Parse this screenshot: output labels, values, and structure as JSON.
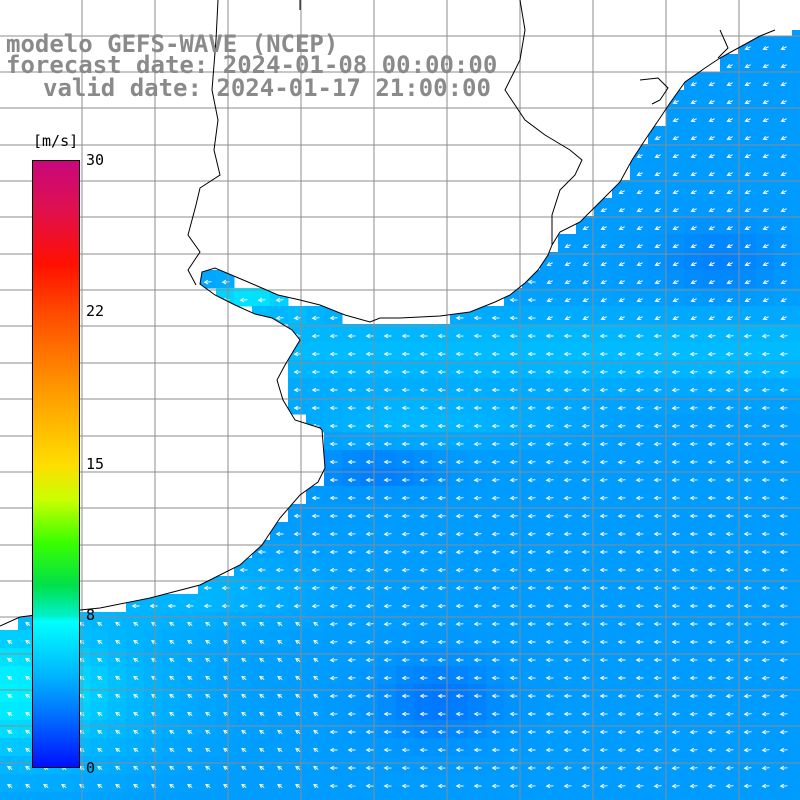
{
  "title": {
    "line1": "modelo GEFS-WAVE (NCEP)",
    "line2": "forecast date: 2024-01-08 00:00:00",
    "line3": "valid date: 2024-01-17 21:00:00"
  },
  "colorbar": {
    "unit": "[m/s]",
    "ticks": [
      {
        "value": 30,
        "label": "30"
      },
      {
        "value": 22,
        "label": "22"
      },
      {
        "value": 15,
        "label": "15"
      },
      {
        "value": 8,
        "label": "8"
      },
      {
        "value": 0,
        "label": "0"
      }
    ],
    "min": 0,
    "max": 30
  },
  "colors": {
    "land": "#ffffff",
    "grid": "#8c8c8c",
    "coast": "#000000",
    "arrow": "#ffffff"
  },
  "map": {
    "field": "wind speed",
    "arrow_direction": "mostly from east (pointing west/north-west), south-west in south-west corner"
  }
}
